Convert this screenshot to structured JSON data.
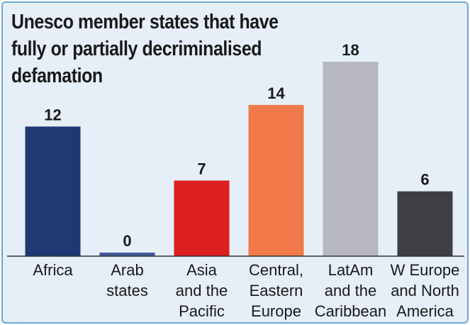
{
  "chart_data": {
    "type": "bar",
    "title": "Unesco member states that have fully or partially decriminalised defamation",
    "categories": [
      [
        "Africa"
      ],
      [
        "Arab",
        "states"
      ],
      [
        "Asia",
        "and the",
        "Pacific"
      ],
      [
        "Central,",
        "Eastern",
        "Europe"
      ],
      [
        "LatAm",
        "and the",
        "Caribbean"
      ],
      [
        "W Europe",
        "and North",
        "America"
      ]
    ],
    "values": [
      12,
      0,
      7,
      14,
      18,
      6
    ],
    "colors": [
      "#1f3a73",
      "#3f5a94",
      "#dc1f1f",
      "#f27a4a",
      "#b7b7bf",
      "#3d3f45"
    ],
    "ylim": [
      0,
      18
    ],
    "grid": false,
    "legend": "none"
  }
}
